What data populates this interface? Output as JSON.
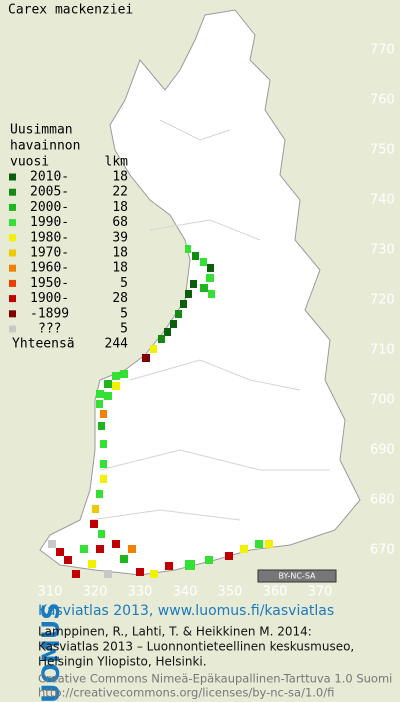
{
  "title": "Carex mackenziei",
  "legend": {
    "heading": [
      "Uusimman",
      "havainnon",
      "vuosi"
    ],
    "count_heading": "lkm",
    "entries": [
      {
        "label": "2010-",
        "count": 18,
        "color": "#0b5e0b"
      },
      {
        "label": "2005-",
        "count": 22,
        "color": "#138a13"
      },
      {
        "label": "2000-",
        "count": 18,
        "color": "#1fb51f"
      },
      {
        "label": "1990-",
        "count": 68,
        "color": "#33e033"
      },
      {
        "label": "1980-",
        "count": 39,
        "color": "#f2f200"
      },
      {
        "label": "1970-",
        "count": 18,
        "color": "#f0c800"
      },
      {
        "label": "1960-",
        "count": 18,
        "color": "#f08000"
      },
      {
        "label": "1950-",
        "count": 5,
        "color": "#e84000"
      },
      {
        "label": "1900-",
        "count": 28,
        "color": "#c00000"
      },
      {
        "label": "-1899",
        "count": 5,
        "color": "#800000"
      },
      {
        "label": "???",
        "count": 5,
        "color": "#c8c8c8"
      }
    ],
    "total_label": "Yhteensä",
    "total": 244
  },
  "right_ticks": [
    770,
    760,
    750,
    740,
    730,
    720,
    710,
    700,
    690,
    680,
    670
  ],
  "bottom_ticks": [
    310,
    320,
    330,
    340,
    350,
    360,
    370
  ],
  "badge": "BY-NC-SA",
  "footer": {
    "brand": "LUOMUS",
    "headline": "Kasviatlas 2013, www.luomus.fi/kasviatlas",
    "citation": [
      "Lamppinen, R., Lahti, T. & Heikkinen M. 2014:",
      "Kasviatlas 2013 – Luonnontieteellinen keskusmuseo,",
      "Helsingin Yliopisto, Helsinki."
    ],
    "license": [
      "Creative Commons Nimeä-Epäkaupallinen-Tarttuva 1.0 Suomi",
      "http://creativecommons.org/licenses/by-nc-sa/1.0/fi"
    ]
  }
}
